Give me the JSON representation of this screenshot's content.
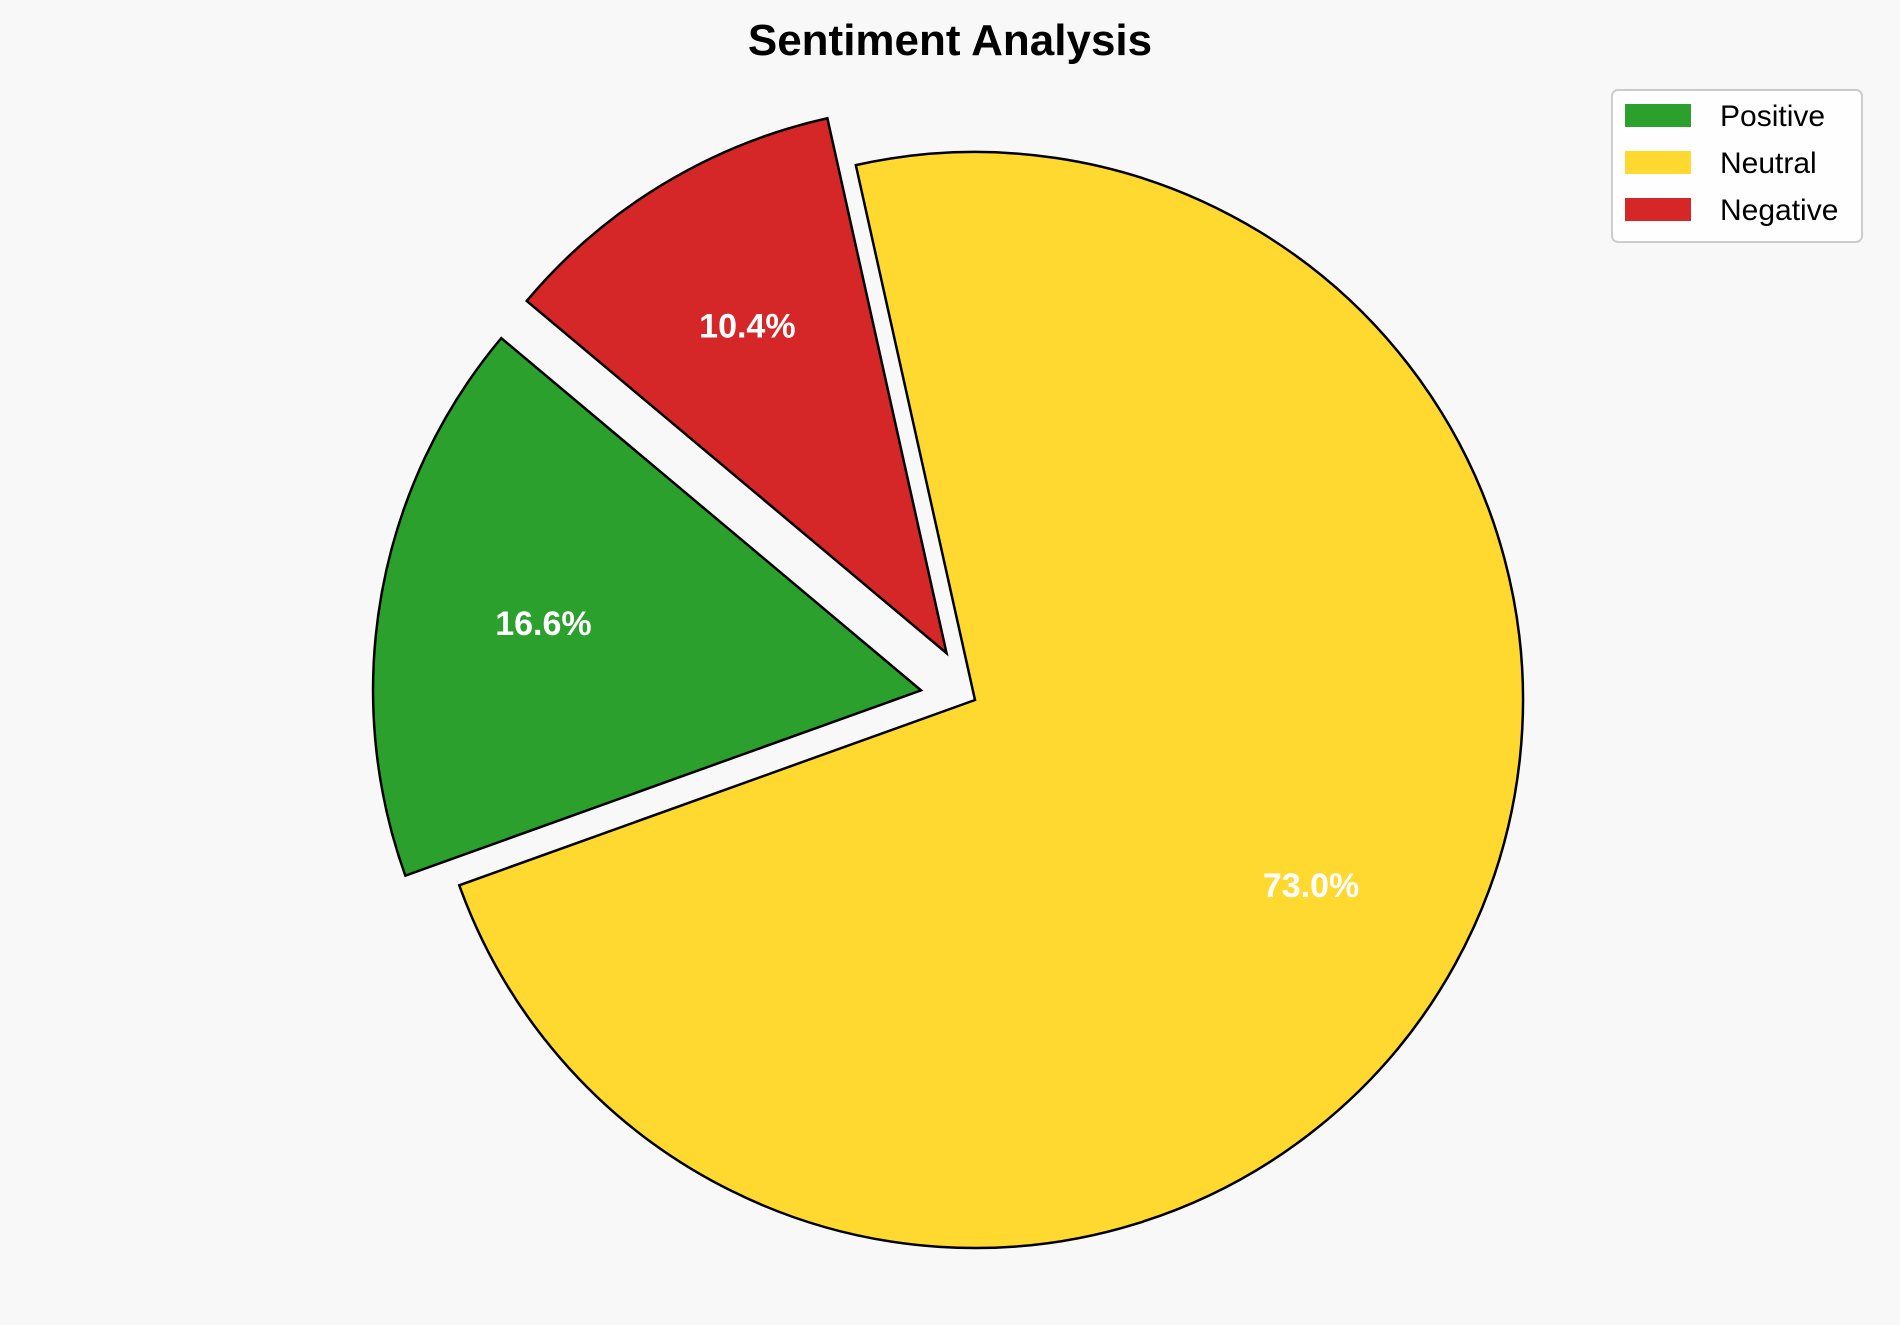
{
  "chart_data": {
    "type": "pie",
    "title": "Sentiment Analysis",
    "categories": [
      "Positive",
      "Neutral",
      "Negative"
    ],
    "values": [
      16.6,
      73.0,
      10.4
    ],
    "labels": [
      "16.6%",
      "73.0%",
      "10.4%"
    ],
    "colors": [
      "#2ca02c",
      "#ffd92f",
      "#d62728"
    ],
    "exploded": [
      true,
      false,
      true
    ],
    "start_angle_deg": 140,
    "legend_placement": "top-right",
    "edge_color": "#000000",
    "background": "#f8f8f8"
  }
}
